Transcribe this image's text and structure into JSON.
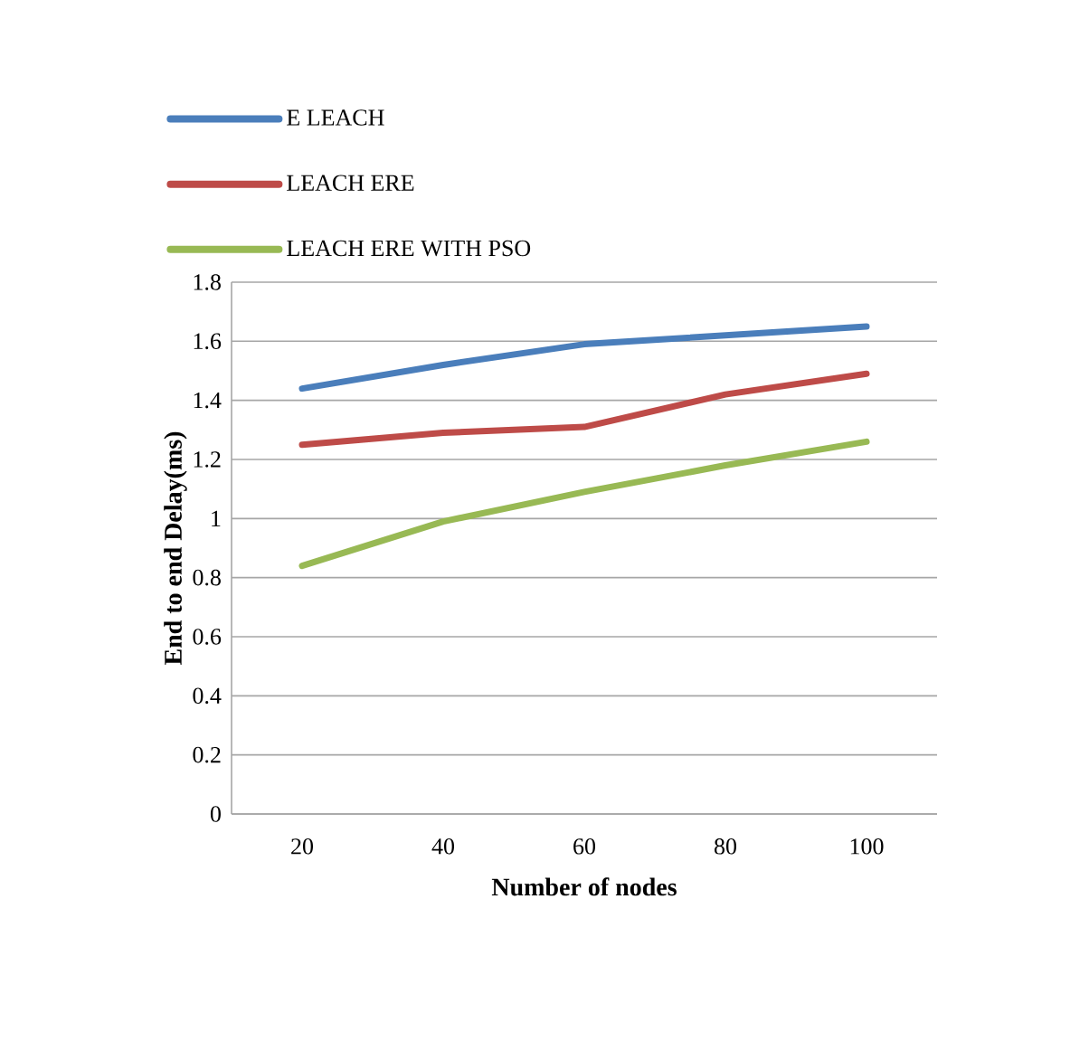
{
  "chart_data": {
    "type": "line",
    "xlabel": "Number of nodes",
    "ylabel": "End to end Delay(ms)",
    "categories": [
      "20",
      "40",
      "60",
      "80",
      "100"
    ],
    "series": [
      {
        "name": "E LEACH",
        "color": "#4a7ebb",
        "values": [
          1.44,
          1.52,
          1.59,
          1.62,
          1.65
        ]
      },
      {
        "name": "LEACH ERE",
        "color": "#be4b48",
        "values": [
          1.25,
          1.29,
          1.31,
          1.42,
          1.49
        ]
      },
      {
        "name": "LEACH ERE WITH PSO",
        "color": "#98b954",
        "values": [
          0.84,
          0.99,
          1.09,
          1.18,
          1.26
        ]
      }
    ],
    "ylim": [
      0,
      1.8
    ],
    "yticks": [
      0,
      0.2,
      0.4,
      0.6,
      0.8,
      1,
      1.2,
      1.4,
      1.6,
      1.8
    ],
    "grid": "y",
    "legend": "top",
    "marker": "none",
    "line_style": "solid"
  }
}
